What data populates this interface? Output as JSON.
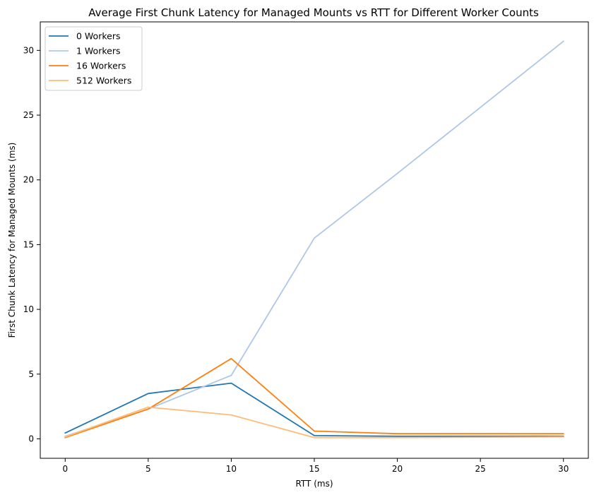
{
  "chart_data": {
    "type": "line",
    "title": "Average First Chunk Latency for Managed Mounts vs RTT for Different Worker Counts",
    "xlabel": "RTT (ms)",
    "ylabel": "First Chunk Latency for Managed Mounts (ms)",
    "x": [
      0,
      5,
      10,
      15,
      20,
      30
    ],
    "xlim": [
      -1.5,
      31.5
    ],
    "ylim": [
      -1.5,
      32.2
    ],
    "xticks": [
      0,
      5,
      10,
      15,
      20,
      25,
      30
    ],
    "yticks": [
      0,
      5,
      10,
      15,
      20,
      25,
      30
    ],
    "grid": false,
    "legend_position": "top-left",
    "series": [
      {
        "name": "0 Workers",
        "color": "#1f77b4",
        "values": [
          0.45,
          3.5,
          4.3,
          0.25,
          0.2,
          0.2
        ]
      },
      {
        "name": "1 Workers",
        "color": "#aec7e8",
        "values": [
          0.2,
          2.3,
          4.9,
          15.5,
          20.5,
          30.7
        ]
      },
      {
        "name": "16 Workers",
        "color": "#ff7f0e",
        "values": [
          0.1,
          2.3,
          6.2,
          0.6,
          0.4,
          0.4
        ]
      },
      {
        "name": "512 Workers",
        "color": "#ffbb78",
        "values": [
          0.15,
          2.45,
          1.85,
          0.1,
          0.1,
          0.15
        ]
      }
    ]
  }
}
